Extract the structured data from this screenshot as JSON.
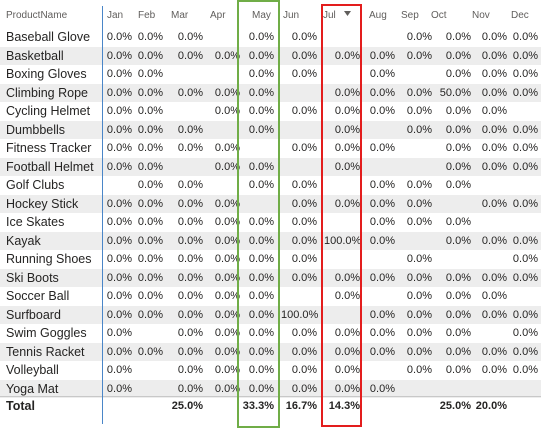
{
  "columns": [
    "ProductName",
    "Jan",
    "Feb",
    "Mar",
    "Apr",
    "May",
    "Jun",
    "Jul",
    "Aug",
    "Sep",
    "Oct",
    "Nov",
    "Dec"
  ],
  "rows": [
    {
      "name": "Baseball Glove",
      "values": [
        "0.0%",
        "0.0%",
        "0.0%",
        "",
        "0.0%",
        "0.0%",
        "",
        "",
        "0.0%",
        "0.0%",
        "0.0%",
        "0.0%"
      ]
    },
    {
      "name": "Basketball",
      "values": [
        "0.0%",
        "0.0%",
        "0.0%",
        "0.0%",
        "0.0%",
        "0.0%",
        "0.0%",
        "0.0%",
        "0.0%",
        "0.0%",
        "0.0%",
        "0.0%"
      ]
    },
    {
      "name": "Boxing Gloves",
      "values": [
        "0.0%",
        "0.0%",
        "",
        "",
        "0.0%",
        "0.0%",
        "",
        "0.0%",
        "",
        "0.0%",
        "0.0%",
        "0.0%"
      ]
    },
    {
      "name": "Climbing Rope",
      "values": [
        "0.0%",
        "0.0%",
        "0.0%",
        "0.0%",
        "0.0%",
        "",
        "0.0%",
        "0.0%",
        "0.0%",
        "50.0%",
        "0.0%",
        "0.0%"
      ]
    },
    {
      "name": "Cycling Helmet",
      "values": [
        "0.0%",
        "0.0%",
        "",
        "0.0%",
        "0.0%",
        "0.0%",
        "0.0%",
        "0.0%",
        "0.0%",
        "0.0%",
        "0.0%",
        ""
      ]
    },
    {
      "name": "Dumbbells",
      "values": [
        "0.0%",
        "0.0%",
        "0.0%",
        "",
        "0.0%",
        "",
        "0.0%",
        "",
        "0.0%",
        "0.0%",
        "0.0%",
        "0.0%"
      ]
    },
    {
      "name": "Fitness Tracker",
      "values": [
        "0.0%",
        "0.0%",
        "0.0%",
        "0.0%",
        "",
        "0.0%",
        "0.0%",
        "0.0%",
        "",
        "0.0%",
        "0.0%",
        "0.0%"
      ]
    },
    {
      "name": "Football Helmet",
      "values": [
        "0.0%",
        "0.0%",
        "",
        "0.0%",
        "0.0%",
        "",
        "0.0%",
        "",
        "",
        "0.0%",
        "0.0%",
        "0.0%"
      ]
    },
    {
      "name": "Golf Clubs",
      "values": [
        "",
        "0.0%",
        "0.0%",
        "",
        "0.0%",
        "0.0%",
        "",
        "0.0%",
        "0.0%",
        "0.0%",
        "",
        ""
      ]
    },
    {
      "name": "Hockey Stick",
      "values": [
        "0.0%",
        "0.0%",
        "0.0%",
        "0.0%",
        "",
        "0.0%",
        "0.0%",
        "0.0%",
        "0.0%",
        "",
        "0.0%",
        "0.0%"
      ]
    },
    {
      "name": "Ice Skates",
      "values": [
        "0.0%",
        "0.0%",
        "0.0%",
        "0.0%",
        "0.0%",
        "0.0%",
        "",
        "0.0%",
        "0.0%",
        "0.0%",
        "",
        ""
      ]
    },
    {
      "name": "Kayak",
      "values": [
        "0.0%",
        "0.0%",
        "0.0%",
        "0.0%",
        "0.0%",
        "0.0%",
        "100.0%",
        "0.0%",
        "",
        "0.0%",
        "0.0%",
        "0.0%"
      ]
    },
    {
      "name": "Running Shoes",
      "values": [
        "0.0%",
        "0.0%",
        "0.0%",
        "0.0%",
        "0.0%",
        "0.0%",
        "",
        "",
        "0.0%",
        "",
        "",
        "0.0%"
      ]
    },
    {
      "name": "Ski Boots",
      "values": [
        "0.0%",
        "0.0%",
        "0.0%",
        "0.0%",
        "0.0%",
        "0.0%",
        "0.0%",
        "0.0%",
        "0.0%",
        "0.0%",
        "0.0%",
        "0.0%"
      ]
    },
    {
      "name": "Soccer Ball",
      "values": [
        "0.0%",
        "0.0%",
        "0.0%",
        "0.0%",
        "0.0%",
        "",
        "0.0%",
        "",
        "0.0%",
        "0.0%",
        "0.0%",
        ""
      ]
    },
    {
      "name": "Surfboard",
      "values": [
        "0.0%",
        "0.0%",
        "0.0%",
        "0.0%",
        "0.0%",
        "100.0%",
        "",
        "0.0%",
        "0.0%",
        "0.0%",
        "0.0%",
        "0.0%"
      ]
    },
    {
      "name": "Swim Goggles",
      "values": [
        "0.0%",
        "",
        "0.0%",
        "0.0%",
        "0.0%",
        "0.0%",
        "0.0%",
        "0.0%",
        "0.0%",
        "0.0%",
        "",
        "0.0%"
      ]
    },
    {
      "name": "Tennis Racket",
      "values": [
        "0.0%",
        "0.0%",
        "0.0%",
        "0.0%",
        "0.0%",
        "0.0%",
        "0.0%",
        "0.0%",
        "0.0%",
        "0.0%",
        "0.0%",
        "0.0%"
      ]
    },
    {
      "name": "Volleyball",
      "values": [
        "0.0%",
        "",
        "0.0%",
        "0.0%",
        "0.0%",
        "0.0%",
        "0.0%",
        "",
        "0.0%",
        "0.0%",
        "0.0%",
        "0.0%"
      ]
    },
    {
      "name": "Yoga Mat",
      "values": [
        "0.0%",
        "",
        "0.0%",
        "0.0%",
        "0.0%",
        "0.0%",
        "0.0%",
        "0.0%",
        "",
        "",
        "",
        ""
      ]
    }
  ],
  "total": {
    "label": "Total",
    "values": [
      "",
      "",
      "25.0%",
      "",
      "33.3%",
      "16.7%",
      "14.3%",
      "",
      "",
      "25.0%",
      "20.0%",
      ""
    ]
  },
  "highlights": {
    "green_column": "May",
    "green_color": "#70ad47",
    "red_column": "Jul",
    "red_color": "#e31d1d"
  },
  "colors": {
    "alt_row": "#ededed",
    "row_header_divider": "#4a86c8",
    "header_text": "#605e5c",
    "text": "#252423"
  },
  "icons": {
    "sort": "sort-descending-icon"
  }
}
